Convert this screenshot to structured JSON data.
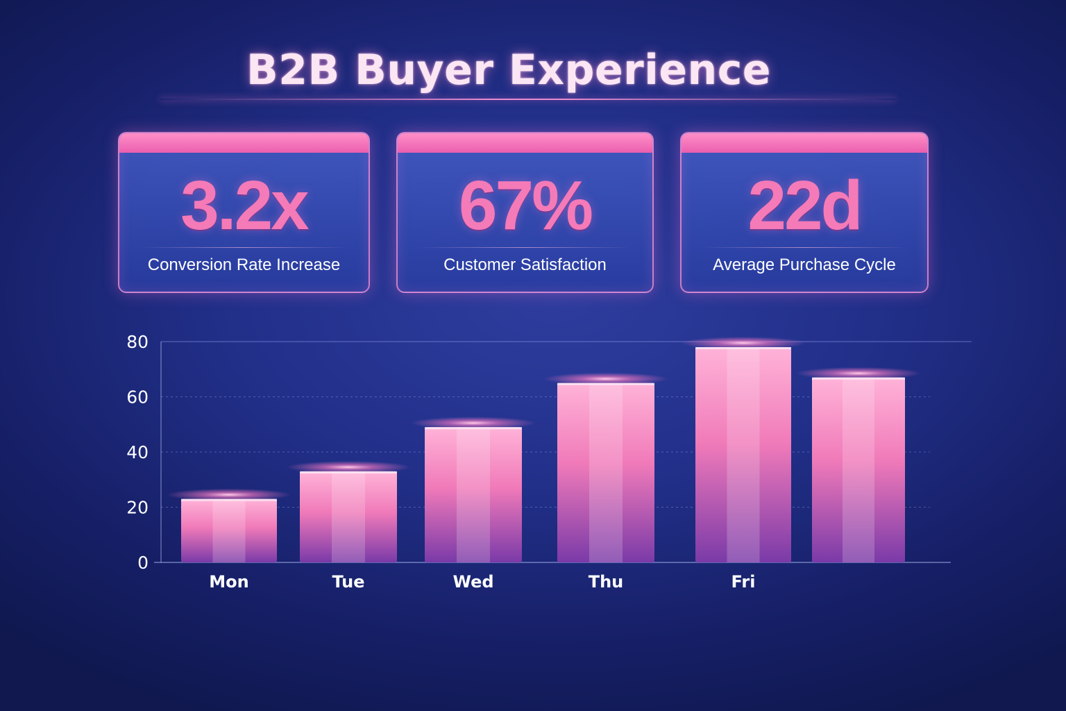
{
  "header": {
    "title": "B2B Buyer Experience"
  },
  "kpis": [
    {
      "value": "3.2x",
      "label": "Conversion Rate Increase"
    },
    {
      "value": "67%",
      "label": "Customer Satisfaction"
    },
    {
      "value": "22d",
      "label": "Average Purchase Cycle"
    }
  ],
  "colors": {
    "accent": "#f57ab8",
    "bar_top": "#ffb0d6",
    "bar_bottom": "#8a3fae",
    "background": "#1c2a7e"
  },
  "chart_data": {
    "type": "bar",
    "categories": [
      "Mon",
      "Tue",
      "Wed",
      "Thu",
      "Fri",
      ""
    ],
    "values": [
      23,
      33,
      49,
      65,
      78,
      67
    ],
    "yticks": [
      0,
      20,
      40,
      60,
      80
    ],
    "ylim": [
      0,
      80
    ],
    "title": "",
    "xlabel": "",
    "ylabel": "",
    "grid": true,
    "legend": "none"
  }
}
